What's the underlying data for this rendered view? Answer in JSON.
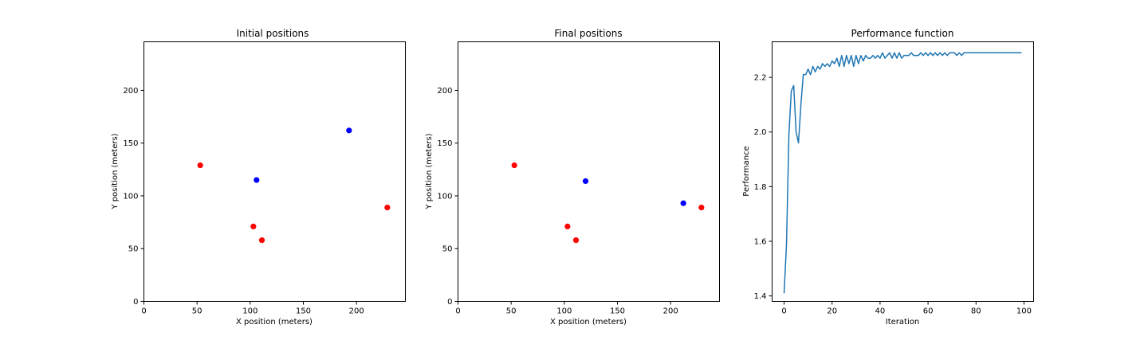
{
  "chart_data": [
    {
      "type": "scatter",
      "title": "Initial positions",
      "xlabel": "X position (meters)",
      "ylabel": "Y position (meters)",
      "xlim": [
        0,
        246
      ],
      "ylim": [
        0,
        246
      ],
      "xticks": [
        0,
        50,
        100,
        150,
        200
      ],
      "yticks": [
        0,
        50,
        100,
        150,
        200
      ],
      "series": [
        {
          "color": "#ff0000",
          "points": [
            [
              53,
              129
            ],
            [
              103,
              71
            ],
            [
              111,
              58
            ],
            [
              229,
              89
            ]
          ]
        },
        {
          "color": "#0000ff",
          "points": [
            [
              106,
              115
            ],
            [
              193,
              162
            ]
          ]
        }
      ]
    },
    {
      "type": "scatter",
      "title": "Final positions",
      "xlabel": "X position (meters)",
      "ylabel": "Y position (meters)",
      "xlim": [
        0,
        246
      ],
      "ylim": [
        0,
        246
      ],
      "xticks": [
        0,
        50,
        100,
        150,
        200
      ],
      "yticks": [
        0,
        50,
        100,
        150,
        200
      ],
      "series": [
        {
          "color": "#ff0000",
          "points": [
            [
              53,
              129
            ],
            [
              103,
              71
            ],
            [
              111,
              58
            ],
            [
              229,
              89
            ]
          ]
        },
        {
          "color": "#0000ff",
          "points": [
            [
              120,
              114
            ],
            [
              212,
              93
            ]
          ]
        }
      ]
    },
    {
      "type": "line",
      "title": "Performance function",
      "xlabel": "Iteration",
      "ylabel": "Performance",
      "xlim": [
        -5,
        104
      ],
      "ylim": [
        1.38,
        2.33
      ],
      "xticks": [
        0,
        20,
        40,
        60,
        80,
        100
      ],
      "yticks": [
        1.4,
        1.6,
        1.8,
        2.0,
        2.2
      ],
      "ytick_labels": [
        "1.4",
        "1.6",
        "1.8",
        "2.0",
        "2.2"
      ],
      "series": [
        {
          "color": "#1f77b4",
          "x": [
            0,
            1,
            2,
            3,
            4,
            5,
            6,
            7,
            8,
            9,
            10,
            11,
            12,
            13,
            14,
            15,
            16,
            17,
            18,
            19,
            20,
            21,
            22,
            23,
            24,
            25,
            26,
            27,
            28,
            29,
            30,
            31,
            32,
            33,
            34,
            35,
            36,
            37,
            38,
            39,
            40,
            41,
            42,
            43,
            44,
            45,
            46,
            47,
            48,
            49,
            50,
            51,
            52,
            53,
            54,
            55,
            56,
            57,
            58,
            59,
            60,
            61,
            62,
            63,
            64,
            65,
            66,
            67,
            68,
            69,
            70,
            71,
            72,
            73,
            74,
            75,
            76,
            77,
            78,
            79,
            80,
            81,
            82,
            83,
            84,
            85,
            86,
            87,
            88,
            89,
            90,
            91,
            92,
            93,
            94,
            95,
            96,
            97,
            98,
            99
          ],
          "y": [
            1.41,
            1.59,
            1.99,
            2.15,
            2.17,
            2.0,
            1.96,
            2.1,
            2.21,
            2.21,
            2.23,
            2.21,
            2.24,
            2.22,
            2.24,
            2.23,
            2.25,
            2.24,
            2.25,
            2.24,
            2.26,
            2.25,
            2.27,
            2.24,
            2.28,
            2.24,
            2.28,
            2.25,
            2.28,
            2.24,
            2.28,
            2.25,
            2.28,
            2.26,
            2.28,
            2.27,
            2.27,
            2.28,
            2.27,
            2.28,
            2.27,
            2.29,
            2.27,
            2.28,
            2.29,
            2.27,
            2.29,
            2.27,
            2.29,
            2.27,
            2.28,
            2.28,
            2.28,
            2.29,
            2.28,
            2.28,
            2.28,
            2.29,
            2.28,
            2.29,
            2.28,
            2.29,
            2.28,
            2.29,
            2.28,
            2.29,
            2.28,
            2.29,
            2.28,
            2.29,
            2.29,
            2.29,
            2.28,
            2.29,
            2.28,
            2.29,
            2.29,
            2.29,
            2.29,
            2.29,
            2.29,
            2.29,
            2.29,
            2.29,
            2.29,
            2.29,
            2.29,
            2.29,
            2.29,
            2.29,
            2.29,
            2.29,
            2.29,
            2.29,
            2.29,
            2.29,
            2.29,
            2.29,
            2.29,
            2.29
          ]
        }
      ]
    }
  ]
}
